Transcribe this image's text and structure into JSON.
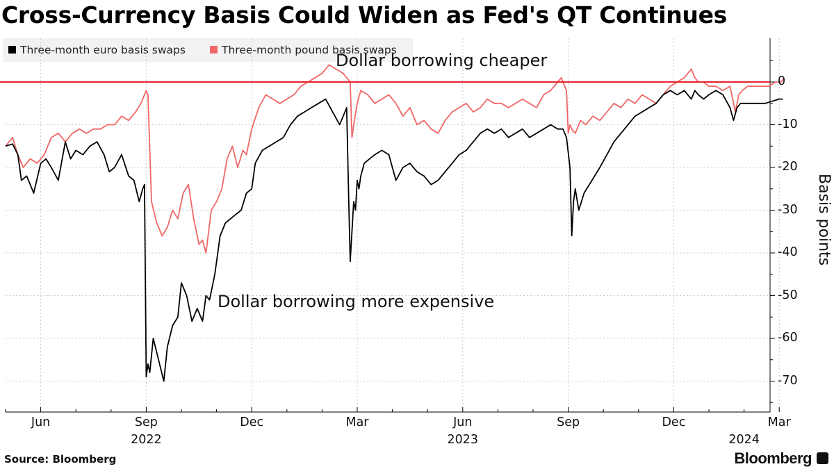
{
  "title": "Cross-Currency Basis Could Widen as Fed's QT Continues",
  "source": "Source: Bloomberg",
  "brand": "Bloomberg",
  "colors": {
    "euro": "#000000",
    "pound": "#f06767",
    "zero_line": "#e8222f",
    "grid": "#c8c8c8"
  },
  "chart_data": {
    "type": "line",
    "title": "Cross-Currency Basis Could Widen as Fed's QT Continues",
    "xlabel": "",
    "ylabel": "Basis points",
    "ylim": [
      -75,
      10
    ],
    "yticks": [
      0,
      -10,
      -20,
      -30,
      -40,
      -50,
      -60,
      -70
    ],
    "x_months_range": [
      "2022-05",
      "2024-03"
    ],
    "x_month_ticks": [
      {
        "label": "Jun",
        "t": 1
      },
      {
        "label": "Sep",
        "t": 4
      },
      {
        "label": "Dec",
        "t": 7
      },
      {
        "label": "Mar",
        "t": 10
      },
      {
        "label": "Jun",
        "t": 13
      },
      {
        "label": "Sep",
        "t": 16
      },
      {
        "label": "Dec",
        "t": 19
      },
      {
        "label": "Mar",
        "t": 22
      }
    ],
    "x_year_ticks": [
      {
        "label": "2022",
        "t": 4
      },
      {
        "label": "2023",
        "t": 13
      },
      {
        "label": "2024",
        "t": 21
      }
    ],
    "annotations": [
      "Dollar borrowing cheaper",
      "Dollar borrowing more expensive"
    ],
    "legend": [
      "Three-month euro basis swaps",
      "Three-month pound basis swaps"
    ],
    "reference_line": 0,
    "series": [
      {
        "name": "Three-month euro basis swaps",
        "x_months": [
          0.0,
          0.2,
          0.35,
          0.45,
          0.6,
          0.8,
          1.0,
          1.15,
          1.3,
          1.5,
          1.7,
          1.85,
          2.0,
          2.2,
          2.4,
          2.6,
          2.8,
          2.95,
          3.1,
          3.3,
          3.5,
          3.65,
          3.8,
          3.9,
          3.95,
          4.0,
          4.05,
          4.1,
          4.2,
          4.35,
          4.5,
          4.6,
          4.75,
          4.9,
          5.0,
          5.15,
          5.3,
          5.45,
          5.6,
          5.7,
          5.8,
          5.95,
          6.1,
          6.25,
          6.4,
          6.55,
          6.7,
          6.85,
          7.0,
          7.1,
          7.3,
          7.5,
          7.7,
          7.9,
          8.1,
          8.3,
          8.5,
          8.7,
          8.9,
          9.1,
          9.3,
          9.5,
          9.6,
          9.7,
          9.75,
          9.8,
          9.85,
          9.9,
          9.95,
          10.0,
          10.05,
          10.1,
          10.2,
          10.35,
          10.5,
          10.7,
          10.9,
          11.1,
          11.3,
          11.5,
          11.7,
          11.9,
          12.1,
          12.3,
          12.5,
          12.7,
          12.9,
          13.1,
          13.3,
          13.5,
          13.7,
          13.9,
          14.1,
          14.3,
          14.5,
          14.7,
          14.9,
          15.1,
          15.3,
          15.5,
          15.7,
          15.85,
          15.95,
          16.05,
          16.1,
          16.15,
          16.2,
          16.3,
          16.45,
          16.6,
          16.75,
          16.9,
          17.1,
          17.3,
          17.5,
          17.7,
          17.9,
          18.1,
          18.3,
          18.5,
          18.7,
          18.9,
          19.1,
          19.3,
          19.5,
          19.6,
          19.7,
          19.85,
          20.0,
          20.2,
          20.4,
          20.6,
          20.7,
          20.8,
          20.9,
          21.0,
          21.2,
          21.4,
          21.6,
          21.8,
          22.0,
          22.1
        ],
        "values": [
          -15,
          -14.5,
          -17,
          -23,
          -22,
          -26,
          -19,
          -18,
          -20,
          -23,
          -14,
          -18,
          -16,
          -17,
          -15,
          -14,
          -17,
          -21,
          -20,
          -17,
          -22,
          -23,
          -28,
          -25,
          -24,
          -69,
          -66,
          -68,
          -60,
          -65,
          -70,
          -62,
          -57,
          -55,
          -47,
          -50,
          -56,
          -53,
          -56,
          -50,
          -51,
          -45,
          -36,
          -33,
          -32,
          -31,
          -30,
          -26,
          -25,
          -19,
          -16,
          -15,
          -14,
          -13,
          -10,
          -8,
          -7,
          -6,
          -5,
          -4,
          -7,
          -10,
          -8,
          -6,
          -25,
          -42,
          -35,
          -28,
          -30,
          -23,
          -25,
          -22,
          -19,
          -18,
          -17,
          -16,
          -17,
          -23,
          -20,
          -19,
          -21,
          -22,
          -24,
          -23,
          -21,
          -19,
          -17,
          -16,
          -14,
          -12,
          -11,
          -12,
          -11,
          -13,
          -12,
          -11,
          -13,
          -12,
          -11,
          -10,
          -11,
          -11,
          -13,
          -20,
          -36,
          -28,
          -25,
          -30,
          -26,
          -24,
          -22,
          -20,
          -17,
          -14,
          -12,
          -10,
          -8,
          -7,
          -6,
          -5,
          -3,
          -2,
          -3,
          -2,
          -4,
          -2,
          -3,
          -4,
          -3,
          -2,
          -3,
          -6,
          -9,
          -6,
          -5,
          -5,
          -5,
          -5,
          -5,
          -4.5,
          -4,
          -4
        ]
      },
      {
        "name": "Three-month pound basis swaps",
        "x_months": [
          0.0,
          0.2,
          0.35,
          0.5,
          0.7,
          0.9,
          1.1,
          1.3,
          1.5,
          1.7,
          1.9,
          2.1,
          2.3,
          2.5,
          2.7,
          2.9,
          3.1,
          3.3,
          3.5,
          3.7,
          3.85,
          3.95,
          4.0,
          4.05,
          4.15,
          4.3,
          4.45,
          4.6,
          4.75,
          4.9,
          5.05,
          5.2,
          5.35,
          5.5,
          5.6,
          5.7,
          5.85,
          6.0,
          6.15,
          6.3,
          6.45,
          6.6,
          6.75,
          6.85,
          7.0,
          7.2,
          7.4,
          7.6,
          7.8,
          8.0,
          8.2,
          8.4,
          8.6,
          8.8,
          9.0,
          9.2,
          9.4,
          9.6,
          9.7,
          9.8,
          9.85,
          9.9,
          10.0,
          10.1,
          10.3,
          10.5,
          10.7,
          10.9,
          11.1,
          11.3,
          11.5,
          11.7,
          11.9,
          12.1,
          12.3,
          12.5,
          12.7,
          12.9,
          13.1,
          13.3,
          13.5,
          13.7,
          13.9,
          14.1,
          14.3,
          14.5,
          14.7,
          14.9,
          15.1,
          15.3,
          15.5,
          15.7,
          15.8,
          15.9,
          15.95,
          16.0,
          16.05,
          16.1,
          16.2,
          16.35,
          16.5,
          16.7,
          16.9,
          17.1,
          17.3,
          17.5,
          17.7,
          17.9,
          18.1,
          18.3,
          18.5,
          18.7,
          18.9,
          19.1,
          19.3,
          19.5,
          19.6,
          19.7,
          19.85,
          20.0,
          20.2,
          20.4,
          20.6,
          20.75,
          20.85,
          20.95,
          21.1,
          21.3,
          21.5,
          21.7,
          21.9,
          22.05,
          22.15
        ],
        "values": [
          -15,
          -13,
          -17,
          -20,
          -18,
          -19,
          -17,
          -13,
          -12,
          -14,
          -12,
          -11,
          -12,
          -11,
          -11,
          -10,
          -10,
          -8,
          -9,
          -7,
          -5,
          -3,
          -2,
          -3,
          -28,
          -33,
          -36,
          -34,
          -30,
          -32,
          -26,
          -24,
          -32,
          -38,
          -37,
          -40,
          -30,
          -28,
          -25,
          -18,
          -15,
          -20,
          -16,
          -17,
          -11,
          -6,
          -3,
          -4,
          -5,
          -4,
          -3,
          -1,
          0,
          1,
          2,
          4,
          3,
          2,
          1,
          0,
          -13,
          -10,
          -5,
          -2,
          -3,
          -5,
          -4,
          -3,
          -5,
          -8,
          -6,
          -10,
          -9,
          -11,
          -12,
          -9,
          -7,
          -6,
          -5,
          -7,
          -6,
          -4,
          -5,
          -5,
          -6,
          -5,
          -4,
          -5,
          -6,
          -3,
          -2,
          0,
          1,
          -1,
          -2,
          -12,
          -10,
          -11,
          -12,
          -9,
          -10,
          -8,
          -9,
          -7,
          -5,
          -6,
          -4,
          -5,
          -3,
          -4,
          -5,
          -3,
          -1,
          0,
          1,
          3,
          1,
          0,
          0,
          -1,
          -1,
          -2,
          -1,
          -7,
          -3,
          -2,
          -1,
          -1,
          -1,
          -1,
          0,
          0,
          1
        ]
      }
    ]
  }
}
